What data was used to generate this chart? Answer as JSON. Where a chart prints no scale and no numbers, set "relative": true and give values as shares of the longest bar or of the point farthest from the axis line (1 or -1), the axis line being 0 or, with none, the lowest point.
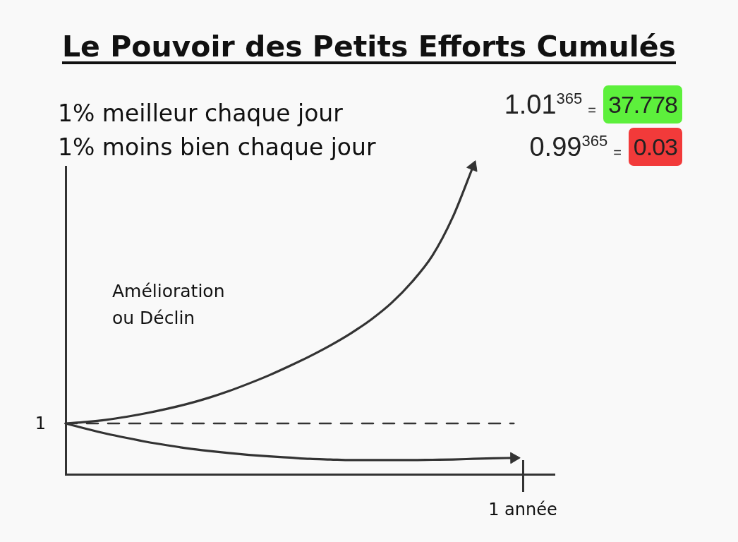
{
  "chart_data": {
    "type": "line",
    "title": "Le Pouvoir des Petits Efforts Cumulés",
    "ylabel": "Amélioration ou Déclin",
    "xlabel": "1 année",
    "relative": true,
    "categories": [
      null,
      null,
      null,
      null,
      null,
      null,
      null,
      null,
      null,
      null,
      null,
      null,
      null,
      null,
      null,
      null,
      null,
      null,
      null,
      null,
      null,
      null,
      null,
      null,
      null
    ],
    "series": [
      {
        "color": "#333333",
        "values": [
          0.165,
          0.17,
          0.177,
          0.187,
          0.199,
          0.213,
          0.229,
          0.248,
          0.27,
          0.295,
          0.322,
          0.352,
          0.384,
          0.419,
          0.458,
          0.503,
          0.557,
          0.625,
          0.71,
          0.835,
          1,
          null,
          null,
          null,
          null
        ]
      },
      {
        "color": "#333333",
        "values": [
          0.165,
          0.148,
          0.132,
          0.118,
          0.105,
          0.094,
          0.084,
          0.076,
          0.069,
          0.063,
          0.058,
          0.054,
          0.05,
          0.048,
          0.046,
          0.046,
          0.046,
          0.046,
          0.047,
          0.048,
          0.05,
          0.052,
          0.053,
          null,
          null
        ]
      },
      {
        "color": "#333333",
        "line_style": "dashed",
        "values": [
          0.165,
          0.165,
          0.165,
          0.165,
          0.165,
          0.165,
          0.165,
          0.165,
          0.165,
          0.165,
          0.165,
          0.165,
          0.165,
          0.165,
          0.165,
          0.165,
          0.165,
          0.165,
          0.165,
          0.165,
          0.165,
          0.165,
          0.165,
          null,
          null
        ]
      }
    ],
    "annotations": [
      "1% meilleur chaque jour",
      "1% moins bien chaque jour",
      "1.01$^{365}$ = 37.778",
      "0.99$^{365}$ = 0.03",
      "1"
    ]
  }
}
